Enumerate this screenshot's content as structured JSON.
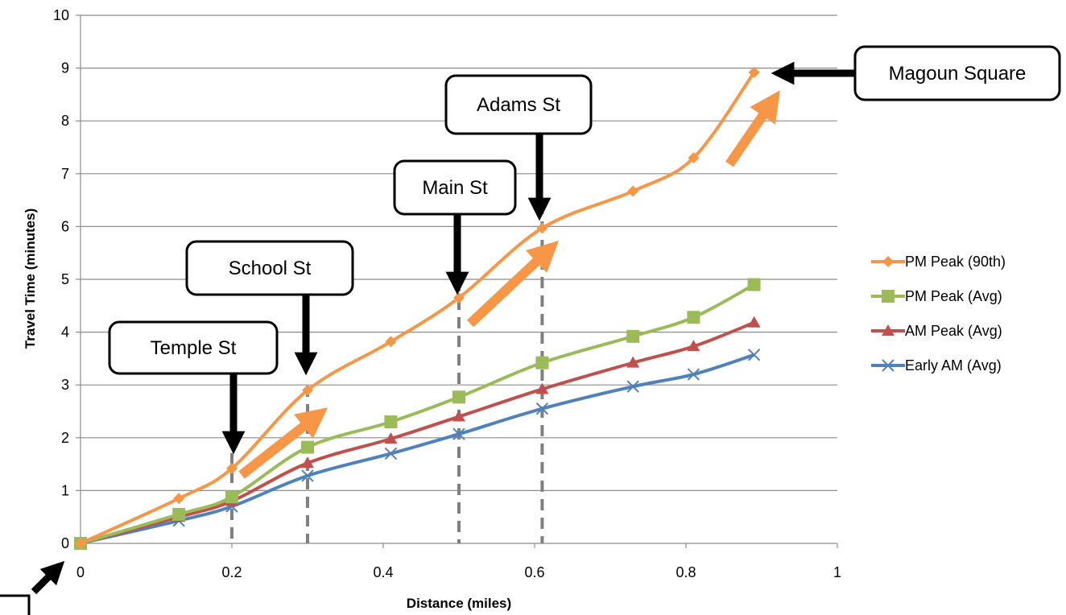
{
  "chart_data": {
    "type": "line",
    "xlabel": "Distance (miles)",
    "ylabel": "Travel Time (minutes)",
    "xlim": [
      0,
      1
    ],
    "ylim": [
      0,
      10
    ],
    "x_ticks": [
      "0",
      "0.2",
      "0.4",
      "0.6",
      "0.8",
      "1"
    ],
    "y_ticks": [
      "0",
      "1",
      "2",
      "3",
      "4",
      "5",
      "6",
      "7",
      "8",
      "9",
      "10"
    ],
    "grid": "horizontal",
    "legend_position": "right",
    "series": [
      {
        "name": "PM Peak (90th)",
        "color": "#F79646",
        "marker": "diamond",
        "x": [
          0,
          0.13,
          0.2,
          0.3,
          0.41,
          0.5,
          0.61,
          0.73,
          0.81,
          0.89
        ],
        "y": [
          0,
          0.85,
          1.42,
          2.9,
          3.82,
          4.65,
          5.97,
          6.67,
          7.3,
          8.92
        ]
      },
      {
        "name": "PM Peak (Avg)",
        "color": "#9BBB59",
        "marker": "square",
        "x": [
          0,
          0.13,
          0.2,
          0.3,
          0.41,
          0.5,
          0.61,
          0.73,
          0.81,
          0.89
        ],
        "y": [
          0,
          0.55,
          0.88,
          1.82,
          2.3,
          2.77,
          3.42,
          3.92,
          4.28,
          4.9
        ]
      },
      {
        "name": "AM Peak (Avg)",
        "color": "#C0504D",
        "marker": "triangle",
        "x": [
          0,
          0.13,
          0.2,
          0.3,
          0.41,
          0.5,
          0.61,
          0.73,
          0.81,
          0.89
        ],
        "y": [
          0,
          0.5,
          0.8,
          1.52,
          1.98,
          2.4,
          2.92,
          3.42,
          3.73,
          4.18
        ]
      },
      {
        "name": "Early AM (Avg)",
        "color": "#4F81BD",
        "marker": "x",
        "x": [
          0,
          0.13,
          0.2,
          0.3,
          0.41,
          0.5,
          0.61,
          0.73,
          0.81,
          0.89
        ],
        "y": [
          0,
          0.43,
          0.7,
          1.28,
          1.7,
          2.07,
          2.55,
          2.97,
          3.2,
          3.57
        ]
      }
    ],
    "annotations": [
      {
        "label": "Temple St",
        "x": 0.2
      },
      {
        "label": "School St",
        "x": 0.3
      },
      {
        "label": "Main St",
        "x": 0.5
      },
      {
        "label": "Adams St",
        "x": 0.61
      },
      {
        "label": "Magoun Square",
        "x": 0.89
      }
    ]
  }
}
